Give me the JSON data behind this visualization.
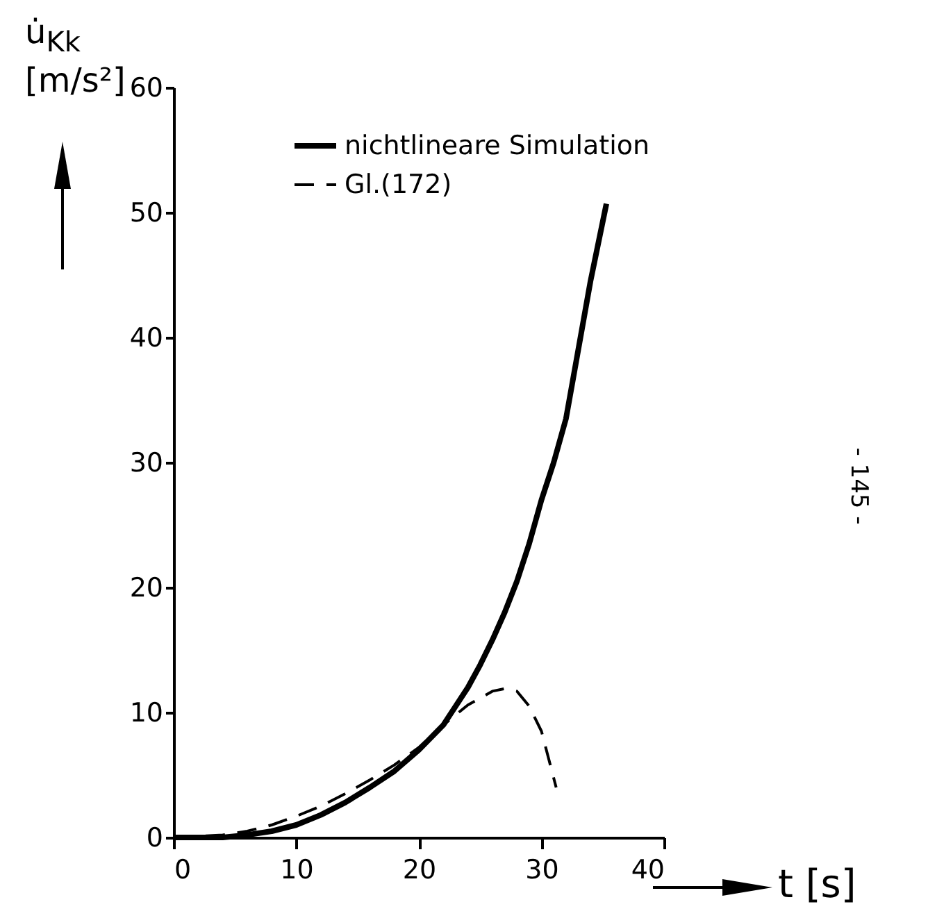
{
  "chart_data": {
    "type": "line",
    "xlabel": "t [s]",
    "ylabel": "u̇$_{Kk}$ [m/s²]",
    "xlim": [
      0,
      40
    ],
    "xticks": [
      0,
      10,
      20,
      30,
      40
    ],
    "ylim": [
      0,
      60
    ],
    "yticks": [
      0,
      10,
      20,
      30,
      40,
      50,
      60
    ],
    "grid": false,
    "legend": "top",
    "marker": "none",
    "annotations": [
      "- 145 -"
    ],
    "series": [
      {
        "name": "nichtlineare Simulation",
        "color": "#000000",
        "line_style": "solid",
        "x": [
          0,
          4,
          6,
          8,
          10,
          12,
          14,
          16,
          18,
          20,
          22,
          24,
          25,
          26,
          27,
          28,
          29,
          30,
          31,
          32,
          33,
          34,
          35.3
        ],
        "values": [
          0,
          0,
          0.2,
          0.5,
          1,
          1.8,
          2.8,
          4,
          5.3,
          7,
          9,
          12,
          13.8,
          15.8,
          18,
          20.5,
          23.5,
          27,
          30,
          33.5,
          39,
          44.5,
          50.7
        ]
      },
      {
        "name": "Gl.(172)",
        "color": "#000000",
        "line_style": "dashed",
        "x": [
          0,
          4,
          6,
          8,
          10,
          12,
          14,
          16,
          18,
          20,
          22,
          24,
          26,
          27,
          28,
          29,
          30,
          31.2
        ],
        "values": [
          0,
          0.2,
          0.5,
          1,
          1.7,
          2.5,
          3.5,
          4.6,
          5.8,
          7.2,
          9,
          10.6,
          11.7,
          11.9,
          11.7,
          10.5,
          8.5,
          4
        ]
      }
    ]
  }
}
